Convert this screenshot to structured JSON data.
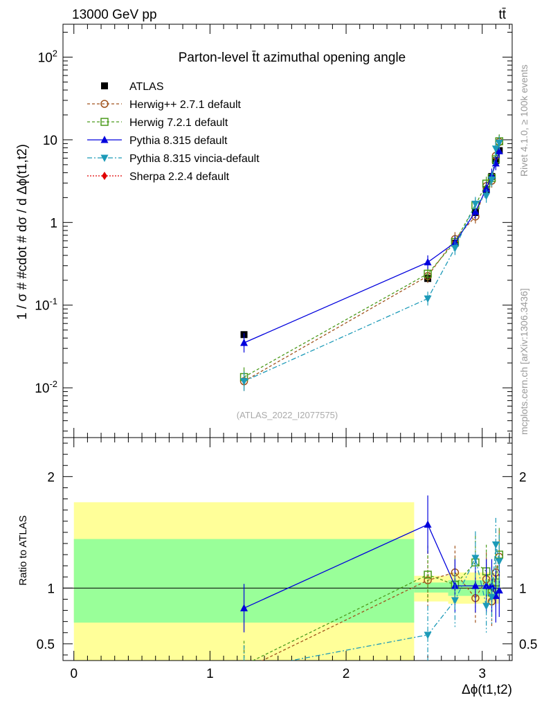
{
  "header": {
    "energy_label": "13000 GeV pp",
    "process_label": "tt̄"
  },
  "side_text": {
    "rivet": "Rivet 4.1.0, ≥ 100k events",
    "source": "mcplots.cern.ch [arXiv:1306.3436]"
  },
  "watermark": "(ATLAS_2022_I2077575)",
  "colors": {
    "atlas": "#000000",
    "herwigpp": "#a0521c",
    "herwig7": "#4a9a1a",
    "pythia": "#0000dd",
    "vincia": "#1c9ab8",
    "sherpa": "#e00000",
    "band_inner": "#99ff99",
    "band_outer": "#ffff99"
  },
  "chart_data": [
    {
      "type": "scatter",
      "title": "Parton-level t̄t azimuthal opening angle",
      "ylabel": "1 / σ # #cdot # dσ / d Δϕ(t1,t2)",
      "yscale": "log",
      "ylim": [
        0.0025,
        250
      ],
      "xlim": [
        -0.08,
        3.22
      ],
      "y_ticks": [
        "10^-2",
        "10^-1",
        "1",
        "10",
        "10^2"
      ],
      "legend_position": "top-left",
      "x": [
        1.25,
        2.6,
        2.8,
        2.95,
        3.03,
        3.07,
        3.1,
        3.125
      ],
      "series": [
        {
          "name": "ATLAS",
          "style": "square",
          "values": [
            0.044,
            0.21,
            0.56,
            1.32,
            2.5,
            3.6,
            5.6,
            7.4
          ]
        },
        {
          "name": "Herwig++ 2.7.1 default",
          "style": "open-circle",
          "values": [
            0.012,
            0.225,
            0.63,
            1.18,
            2.75,
            3.2,
            6.4,
            9.4
          ]
        },
        {
          "name": "Herwig 7.2.1 default",
          "style": "open-square",
          "values": [
            0.0135,
            0.24,
            0.58,
            1.62,
            2.95,
            3.45,
            5.8,
            9.6
          ]
        },
        {
          "name": "Pythia 8.315 default",
          "style": "triangle",
          "values": [
            0.035,
            0.33,
            0.57,
            1.35,
            2.55,
            3.7,
            5.2,
            7.3
          ]
        },
        {
          "name": "Pythia 8.315 vincia-default",
          "style": "triangle-down",
          "values": [
            0.012,
            0.12,
            0.49,
            1.68,
            2.1,
            3.3,
            7.8,
            9.2
          ]
        },
        {
          "name": "Sherpa 2.2.4 default",
          "style": "diamond",
          "values": []
        }
      ]
    },
    {
      "type": "scatter",
      "ylabel": "Ratio to ATLAS",
      "xlabel": "Δϕ(t1,t2)",
      "ylim": [
        0.35,
        2.35
      ],
      "xlim": [
        -0.08,
        3.22
      ],
      "x_ticks": [
        "0",
        "1",
        "2",
        "3"
      ],
      "y_ticks": [
        "0.5",
        "1",
        "2"
      ],
      "reference_line": 1,
      "bands": [
        {
          "x": [
            0,
            2.5
          ],
          "inner": [
            0.69,
            1.44
          ],
          "outer": [
            0.3,
            1.77
          ]
        },
        {
          "x": [
            2.5,
            2.75
          ],
          "inner": [
            0.96,
            1.05
          ],
          "outer": [
            0.88,
            1.11
          ]
        },
        {
          "x": [
            2.75,
            3.13
          ],
          "inner": [
            0.93,
            1.07
          ],
          "outer": [
            0.86,
            1.14
          ]
        }
      ],
      "x": [
        1.25,
        2.6,
        2.8,
        2.95,
        3.03,
        3.07,
        3.1,
        3.125
      ],
      "series": [
        {
          "name": "Herwig++ 2.7.1 default",
          "values": [
            0.27,
            1.07,
            1.14,
            0.91,
            1.08,
            0.88,
            1.14,
            1.28
          ]
        },
        {
          "name": "Herwig 7.2.1 default",
          "values": [
            0.31,
            1.12,
            1.03,
            1.23,
            1.15,
            0.96,
            1.05,
            1.3
          ]
        },
        {
          "name": "Pythia 8.315 default",
          "values": [
            0.82,
            1.57,
            1.02,
            1.02,
            1.02,
            1.02,
            0.93,
            0.98
          ]
        },
        {
          "name": "Pythia 8.315 vincia-default",
          "values": [
            0.27,
            0.58,
            0.89,
            1.27,
            0.84,
            0.92,
            1.39,
            1.24
          ]
        }
      ]
    }
  ]
}
